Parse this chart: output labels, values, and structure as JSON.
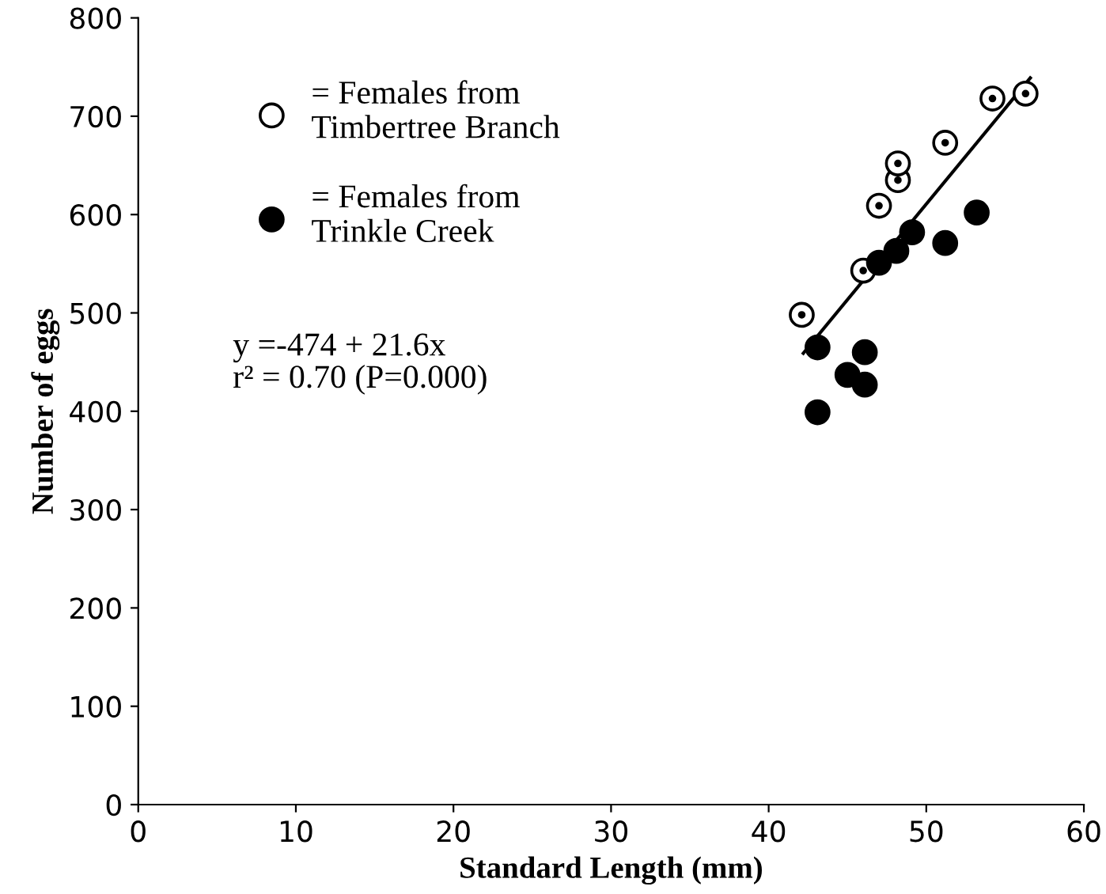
{
  "chart_data": {
    "type": "scatter",
    "xlabel": "Standard Length (mm)",
    "ylabel": "Number of eggs",
    "xlim": [
      0,
      60
    ],
    "ylim": [
      0,
      800
    ],
    "xticks": [
      0,
      10,
      20,
      30,
      40,
      50,
      60
    ],
    "yticks": [
      0,
      100,
      200,
      300,
      400,
      500,
      600,
      700,
      800
    ],
    "grid": false,
    "legend": "top left",
    "marker": "circle",
    "series": [
      {
        "name": "= Females from\nTimbertree Branch",
        "color": "#ffffff",
        "x": [
          42.1,
          46.0,
          47.0,
          48.2,
          48.2,
          51.2,
          54.2,
          56.3
        ],
        "values": [
          498,
          543,
          609,
          635,
          652,
          673,
          718,
          723
        ]
      },
      {
        "name": "= Females from\nTrinkle Creek",
        "color": "#000000",
        "x": [
          43.1,
          46.1,
          45.0,
          46.1,
          43.1,
          47.0,
          48.1,
          49.1,
          51.2,
          53.2
        ],
        "values": [
          465,
          460,
          437,
          427,
          399,
          551,
          563,
          582,
          571,
          602
        ]
      },
      {
        "type": "line",
        "marker": "none",
        "color": "#000000",
        "x": [
          42.2,
          56.6
        ],
        "values": [
          459,
          739
        ]
      }
    ],
    "annotations": [
      "y =-474 + 21.6x",
      "r² = 0.70 (P=0.000)"
    ]
  }
}
